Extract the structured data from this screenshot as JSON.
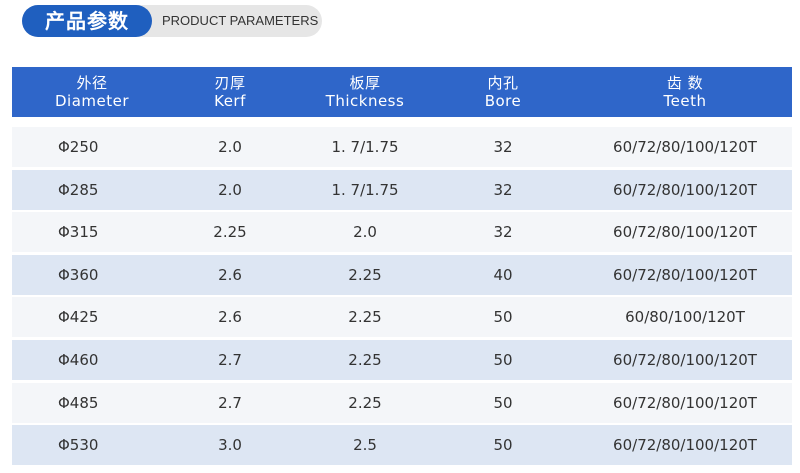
{
  "header": {
    "title": "产品参数",
    "subtitle": "PRODUCT PARAMETERS"
  },
  "table": {
    "columns": [
      {
        "cn": "外径",
        "en": "Diameter"
      },
      {
        "cn": "刃厚",
        "en": "Kerf"
      },
      {
        "cn": "板厚",
        "en": "Thickness"
      },
      {
        "cn": "内孔",
        "en": "Bore"
      },
      {
        "cn": "齿 数",
        "en": "Teeth"
      }
    ],
    "rows": [
      [
        "Φ250",
        "2.0",
        "1. 7/1.75",
        "32",
        "60/72/80/100/120T"
      ],
      [
        "Φ285",
        "2.0",
        "1. 7/1.75",
        "32",
        "60/72/80/100/120T"
      ],
      [
        "Φ315",
        "2.25",
        "2.0",
        "32",
        "60/72/80/100/120T"
      ],
      [
        "Φ360",
        "2.6",
        "2.25",
        "40",
        "60/72/80/100/120T"
      ],
      [
        "Φ425",
        "2.6",
        "2.25",
        "50",
        "60/80/100/120T"
      ],
      [
        "Φ460",
        "2.7",
        "2.25",
        "50",
        "60/72/80/100/120T"
      ],
      [
        "Φ485",
        "2.7",
        "2.25",
        "50",
        "60/72/80/100/120T"
      ],
      [
        "Φ530",
        "3.0",
        "2.5",
        "50",
        "60/72/80/100/120T"
      ]
    ]
  }
}
